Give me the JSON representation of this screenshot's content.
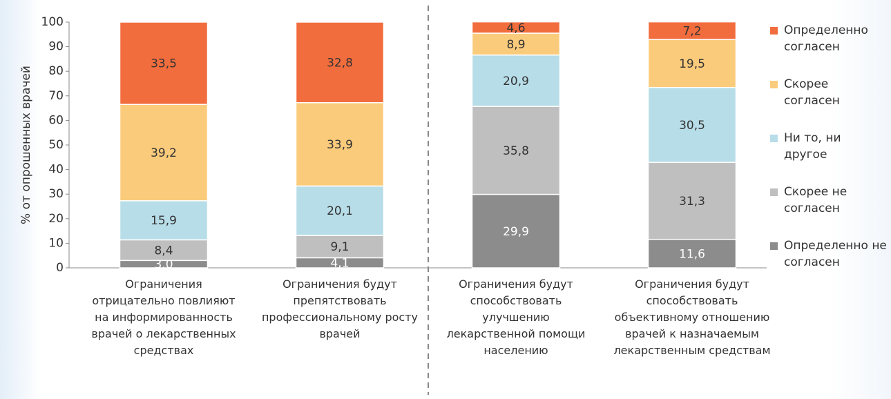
{
  "chart_data": {
    "type": "stacked-bar",
    "y_label": "% от опрошенных врачей",
    "categories": [
      "Ограничения отрицательно повлияют на информированность врачей о лекарственных средствах",
      "Ограничения будут препятствовать профессиональному росту врачей",
      "Ограничения будут способствовать улучшению лекарственной помощи населению",
      "Ограничения будут способствовать объективному отношению врачей к назначаемым лекарственным средствам"
    ],
    "series": [
      {
        "name": "Определенно не согласен",
        "color": "#8c8c8c",
        "values": [
          3.0,
          4.1,
          29.9,
          11.6
        ],
        "value_labels": [
          "3,0",
          "4,1",
          "29,9",
          "11,6"
        ]
      },
      {
        "name": "Скорее не согласен",
        "color": "#bfbfbf",
        "values": [
          8.4,
          9.1,
          35.8,
          31.3
        ],
        "value_labels": [
          "8,4",
          "9,1",
          "35,8",
          "31,3"
        ]
      },
      {
        "name": "Ни то, ни другое",
        "color": "#b7dde8",
        "values": [
          15.9,
          20.1,
          20.9,
          30.5
        ],
        "value_labels": [
          "15,9",
          "20,1",
          "20,9",
          "30,5"
        ]
      },
      {
        "name": "Скорее согласен",
        "color": "#fbcb7c",
        "values": [
          39.2,
          33.9,
          8.9,
          19.5
        ],
        "value_labels": [
          "39,2",
          "33,9",
          "8,9",
          "19,5"
        ]
      },
      {
        "name": "Определенно согласен",
        "color": "#f26d3d",
        "values": [
          33.5,
          32.8,
          4.6,
          7.2
        ],
        "value_labels": [
          "33,5",
          "32,8",
          "4,6",
          "7,2"
        ]
      }
    ],
    "ylim": [
      0,
      100
    ],
    "yticks": [
      0,
      10,
      20,
      30,
      40,
      50,
      60,
      70,
      80,
      90,
      100
    ],
    "legend": "right"
  }
}
